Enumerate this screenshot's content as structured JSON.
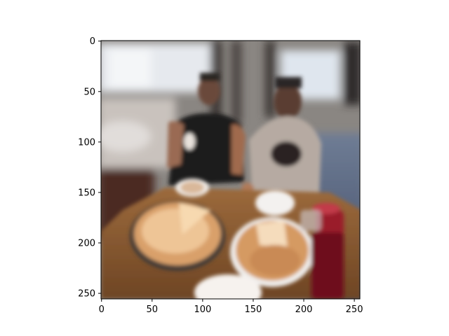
{
  "figure": {
    "image_subject": "two-men-at-restaurant-table-with-pizzas",
    "x_axis": {
      "range": [
        0,
        255
      ],
      "ticks": [
        {
          "value": 0,
          "label": "0"
        },
        {
          "value": 50,
          "label": "50"
        },
        {
          "value": 100,
          "label": "100"
        },
        {
          "value": 150,
          "label": "150"
        },
        {
          "value": 200,
          "label": "200"
        },
        {
          "value": 250,
          "label": "250"
        }
      ]
    },
    "y_axis": {
      "range": [
        0,
        255
      ],
      "inverted": true,
      "ticks": [
        {
          "value": 0,
          "label": "0"
        },
        {
          "value": 50,
          "label": "50"
        },
        {
          "value": 100,
          "label": "100"
        },
        {
          "value": 150,
          "label": "150"
        },
        {
          "value": 200,
          "label": "200"
        },
        {
          "value": 250,
          "label": "250"
        }
      ]
    }
  }
}
